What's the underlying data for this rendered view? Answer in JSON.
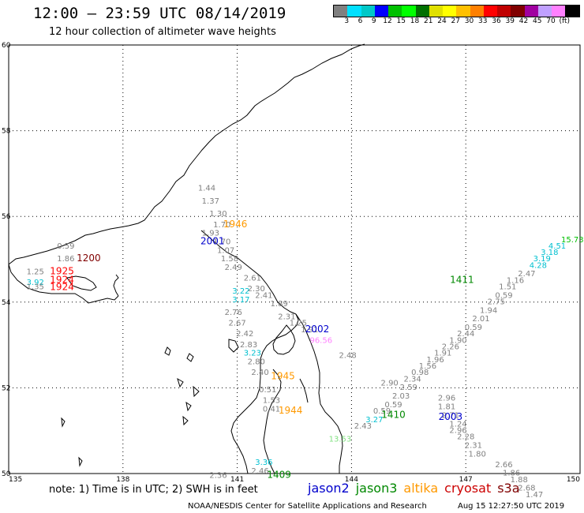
{
  "header": {
    "title": "12:00 – 23:59 UTC 08/14/2019",
    "subtitle": "12 hour collection of altimeter wave heights"
  },
  "legend": {
    "colors": [
      "#808080",
      "#00e0ff",
      "#00c8c8",
      "#0000ff",
      "#00c000",
      "#00ff00",
      "#007000",
      "#e0e000",
      "#ffff00",
      "#ffc000",
      "#ff8000",
      "#ff0000",
      "#c00000",
      "#800000",
      "#a000a0",
      "#c0a0ff",
      "#ff80ff",
      "#000000"
    ],
    "labels": [
      "3",
      "6",
      "9",
      "12",
      "15",
      "18",
      "21",
      "24",
      "27",
      "30",
      "33",
      "36",
      "39",
      "42",
      "45",
      "70",
      "(ft)"
    ]
  },
  "axes": {
    "lat_labels": [
      "60",
      "58",
      "56",
      "54",
      "52",
      "50"
    ],
    "lon_labels": [
      "135",
      "138",
      "141",
      "144",
      "147",
      "150"
    ]
  },
  "chart_data": {
    "type": "scatter",
    "title": "12:00 – 23:59 UTC 08/14/2019",
    "subtitle": "12 hour collection of altimeter wave heights",
    "xlabel": "",
    "ylabel": "",
    "xlim": [
      135,
      150
    ],
    "ylim": [
      50,
      60
    ],
    "grid": true,
    "points": [
      {
        "lon": 140.2,
        "lat": 56.6,
        "text": "1.44",
        "color": "#808080"
      },
      {
        "lon": 140.3,
        "lat": 56.3,
        "text": "1.37",
        "color": "#808080"
      },
      {
        "lon": 140.5,
        "lat": 56.0,
        "text": "1.30",
        "color": "#808080"
      },
      {
        "lon": 140.6,
        "lat": 55.75,
        "text": "1.70",
        "color": "#808080"
      },
      {
        "lon": 140.3,
        "lat": 55.55,
        "text": "1.93",
        "color": "#808080"
      },
      {
        "lon": 140.6,
        "lat": 55.35,
        "text": "1.70",
        "color": "#808080"
      },
      {
        "lon": 140.7,
        "lat": 55.15,
        "text": "1.07",
        "color": "#808080"
      },
      {
        "lon": 140.8,
        "lat": 54.95,
        "text": "1.58",
        "color": "#808080"
      },
      {
        "lon": 140.9,
        "lat": 54.75,
        "text": "2.49",
        "color": "#808080"
      },
      {
        "lon": 141.4,
        "lat": 54.5,
        "text": "2.61",
        "color": "#808080"
      },
      {
        "lon": 141.5,
        "lat": 54.25,
        "text": "2.30",
        "color": "#808080"
      },
      {
        "lon": 141.7,
        "lat": 54.1,
        "text": "2.41",
        "color": "#808080"
      },
      {
        "lon": 142.1,
        "lat": 53.9,
        "text": "1.89",
        "color": "#808080"
      },
      {
        "lon": 142.3,
        "lat": 53.6,
        "text": "2.31",
        "color": "#808080"
      },
      {
        "lon": 142.6,
        "lat": 53.45,
        "text": "1.25",
        "color": "#808080"
      },
      {
        "lon": 142.9,
        "lat": 53.3,
        "text": "1.91",
        "color": "#808080"
      },
      {
        "lon": 141.1,
        "lat": 54.2,
        "text": "3.22",
        "color": "#00c0d0"
      },
      {
        "lon": 141.1,
        "lat": 54.0,
        "text": "3.17",
        "color": "#00c0d0"
      },
      {
        "lon": 140.9,
        "lat": 53.7,
        "text": "2.76",
        "color": "#808080"
      },
      {
        "lon": 141.0,
        "lat": 53.45,
        "text": "2.67",
        "color": "#808080"
      },
      {
        "lon": 141.2,
        "lat": 53.2,
        "text": "2.42",
        "color": "#808080"
      },
      {
        "lon": 141.3,
        "lat": 52.95,
        "text": "2.83",
        "color": "#808080"
      },
      {
        "lon": 141.4,
        "lat": 52.75,
        "text": "3.23",
        "color": "#00c0d0"
      },
      {
        "lon": 141.5,
        "lat": 52.55,
        "text": "2.80",
        "color": "#808080"
      },
      {
        "lon": 141.6,
        "lat": 52.3,
        "text": "2.40",
        "color": "#808080"
      },
      {
        "lon": 141.8,
        "lat": 51.9,
        "text": "0.51",
        "color": "#808080"
      },
      {
        "lon": 141.9,
        "lat": 51.65,
        "text": "1.53",
        "color": "#808080"
      },
      {
        "lon": 141.9,
        "lat": 51.45,
        "text": "0.41",
        "color": "#808080"
      },
      {
        "lon": 143.2,
        "lat": 53.05,
        "text": "96.56",
        "color": "#ff80ff"
      },
      {
        "lon": 143.9,
        "lat": 52.7,
        "text": "2.48",
        "color": "#808080"
      },
      {
        "lon": 145.0,
        "lat": 52.05,
        "text": "2.90",
        "color": "#808080"
      },
      {
        "lon": 136.5,
        "lat": 55.25,
        "text": "0.59",
        "color": "#808080"
      },
      {
        "lon": 136.5,
        "lat": 54.95,
        "text": "1.86",
        "color": "#808080"
      },
      {
        "lon": 135.7,
        "lat": 54.65,
        "text": "1.25",
        "color": "#808080"
      },
      {
        "lon": 135.7,
        "lat": 54.4,
        "text": "3.92",
        "color": "#00c0d0"
      },
      {
        "lon": 135.7,
        "lat": 54.3,
        "text": "1.35",
        "color": "#808080"
      },
      {
        "lon": 140.5,
        "lat": 49.9,
        "text": "2.36",
        "color": "#808080"
      },
      {
        "lon": 141.6,
        "lat": 50.0,
        "text": "2.46",
        "color": "#808080"
      },
      {
        "lon": 141.7,
        "lat": 50.2,
        "text": "3.36",
        "color": "#00c0d0"
      },
      {
        "lon": 143.7,
        "lat": 50.75,
        "text": "13.53",
        "color": "#80e080"
      },
      {
        "lon": 144.3,
        "lat": 51.05,
        "text": "2.43",
        "color": "#808080"
      },
      {
        "lon": 144.6,
        "lat": 51.2,
        "text": "3.27",
        "color": "#00c0d0"
      },
      {
        "lon": 144.8,
        "lat": 51.4,
        "text": "0.59",
        "color": "#808080"
      },
      {
        "lon": 145.1,
        "lat": 51.55,
        "text": "0.59",
        "color": "#808080"
      },
      {
        "lon": 145.3,
        "lat": 51.75,
        "text": "2.03",
        "color": "#808080"
      },
      {
        "lon": 145.5,
        "lat": 51.95,
        "text": "2.59",
        "color": "#808080"
      },
      {
        "lon": 145.6,
        "lat": 52.15,
        "text": "2.34",
        "color": "#808080"
      },
      {
        "lon": 145.8,
        "lat": 52.3,
        "text": "0.98",
        "color": "#808080"
      },
      {
        "lon": 146.0,
        "lat": 52.45,
        "text": "1.56",
        "color": "#808080"
      },
      {
        "lon": 146.2,
        "lat": 52.6,
        "text": "1.96",
        "color": "#808080"
      },
      {
        "lon": 146.4,
        "lat": 52.75,
        "text": "1.91",
        "color": "#808080"
      },
      {
        "lon": 146.6,
        "lat": 52.9,
        "text": "2.26",
        "color": "#808080"
      },
      {
        "lon": 146.8,
        "lat": 53.05,
        "text": "1.90",
        "color": "#808080"
      },
      {
        "lon": 147.0,
        "lat": 53.2,
        "text": "2.44",
        "color": "#808080"
      },
      {
        "lon": 147.2,
        "lat": 53.35,
        "text": "0.59",
        "color": "#808080"
      },
      {
        "lon": 147.4,
        "lat": 53.55,
        "text": "2.01",
        "color": "#808080"
      },
      {
        "lon": 147.6,
        "lat": 53.75,
        "text": "1.94",
        "color": "#808080"
      },
      {
        "lon": 147.8,
        "lat": 53.95,
        "text": "2.75",
        "color": "#808080"
      },
      {
        "lon": 148.0,
        "lat": 54.1,
        "text": "0.59",
        "color": "#808080"
      },
      {
        "lon": 148.1,
        "lat": 54.3,
        "text": "1.51",
        "color": "#808080"
      },
      {
        "lon": 148.3,
        "lat": 54.45,
        "text": "1.16",
        "color": "#808080"
      },
      {
        "lon": 148.6,
        "lat": 54.6,
        "text": "2.47",
        "color": "#808080"
      },
      {
        "lon": 148.9,
        "lat": 54.8,
        "text": "4.28",
        "color": "#00c0d0"
      },
      {
        "lon": 149.0,
        "lat": 54.95,
        "text": "3.19",
        "color": "#00c0d0"
      },
      {
        "lon": 149.2,
        "lat": 55.1,
        "text": "3.18",
        "color": "#00c0d0"
      },
      {
        "lon": 149.4,
        "lat": 55.25,
        "text": "4.51",
        "color": "#00c0d0"
      },
      {
        "lon": 149.8,
        "lat": 55.4,
        "text": "15.73",
        "color": "#00c000"
      },
      {
        "lon": 146.5,
        "lat": 51.7,
        "text": "2.96",
        "color": "#808080"
      },
      {
        "lon": 146.5,
        "lat": 51.5,
        "text": "1.81",
        "color": "#808080"
      },
      {
        "lon": 146.6,
        "lat": 51.3,
        "text": "2.71",
        "color": "#808080"
      },
      {
        "lon": 146.8,
        "lat": 51.1,
        "text": "1.24",
        "color": "#808080"
      },
      {
        "lon": 146.8,
        "lat": 50.95,
        "text": "2.96",
        "color": "#808080"
      },
      {
        "lon": 147.0,
        "lat": 50.8,
        "text": "2.28",
        "color": "#808080"
      },
      {
        "lon": 147.2,
        "lat": 50.6,
        "text": "2.31",
        "color": "#808080"
      },
      {
        "lon": 147.3,
        "lat": 50.4,
        "text": "1.80",
        "color": "#808080"
      },
      {
        "lon": 148.0,
        "lat": 50.15,
        "text": "2.66",
        "color": "#808080"
      },
      {
        "lon": 148.2,
        "lat": 49.95,
        "text": "1.86",
        "color": "#808080"
      },
      {
        "lon": 148.4,
        "lat": 49.8,
        "text": "1.88",
        "color": "#808080"
      },
      {
        "lon": 148.6,
        "lat": 49.6,
        "text": "2.68",
        "color": "#808080"
      },
      {
        "lon": 148.8,
        "lat": 49.45,
        "text": "1.47",
        "color": "#808080"
      }
    ],
    "passes": [
      {
        "lon": 140.95,
        "lat": 55.75,
        "text": "1946",
        "color": "#ff9900"
      },
      {
        "lon": 140.35,
        "lat": 55.35,
        "text": "2001",
        "color": "#0000cc"
      },
      {
        "lon": 137.1,
        "lat": 54.95,
        "text": "1200",
        "color": "#800000"
      },
      {
        "lon": 136.4,
        "lat": 54.65,
        "text": "1925",
        "color": "#ff0000"
      },
      {
        "lon": 136.4,
        "lat": 54.45,
        "text": "1924",
        "color": "#ff0000"
      },
      {
        "lon": 136.4,
        "lat": 54.28,
        "text": "1924",
        "color": "#ff0000"
      },
      {
        "lon": 143.1,
        "lat": 53.3,
        "text": "2002",
        "color": "#0000cc"
      },
      {
        "lon": 142.2,
        "lat": 52.2,
        "text": "1945",
        "color": "#ff9900"
      },
      {
        "lon": 142.4,
        "lat": 51.4,
        "text": "1944",
        "color": "#ff9900"
      },
      {
        "lon": 146.9,
        "lat": 54.45,
        "text": "1411",
        "color": "#008800"
      },
      {
        "lon": 145.1,
        "lat": 51.3,
        "text": "1410",
        "color": "#008800"
      },
      {
        "lon": 146.6,
        "lat": 51.25,
        "text": "2003",
        "color": "#0000cc"
      },
      {
        "lon": 142.1,
        "lat": 49.9,
        "text": "1409",
        "color": "#008800"
      }
    ]
  },
  "notes": {
    "note_text": "note:  1) Time is in UTC;  2) SWH is in feet",
    "satellites": [
      {
        "name": "jason2",
        "color": "#0000cc"
      },
      {
        "name": "jason3",
        "color": "#008800"
      },
      {
        "name": "altika",
        "color": "#ff9900"
      },
      {
        "name": "cryosat",
        "color": "#cc0000"
      },
      {
        "name": "s3a",
        "color": "#800000"
      }
    ]
  },
  "footer": {
    "credit": "NOAA/NESDIS Center for Satellite Applications and Research",
    "timestamp": "Aug 15 12:27:50 UTC 2019"
  }
}
